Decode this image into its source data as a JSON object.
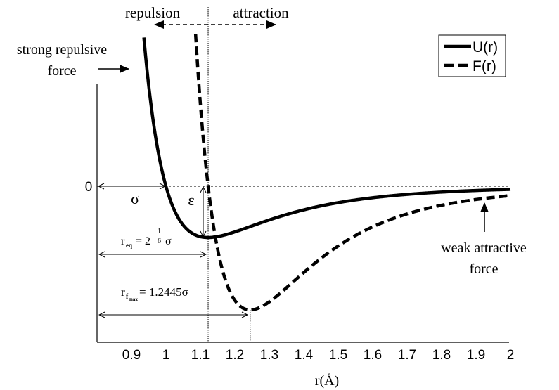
{
  "chart_data": {
    "type": "line",
    "title": "",
    "xlabel": "r(Å)",
    "ylabel": "",
    "xlim": [
      0.8,
      2.0
    ],
    "ylim_U_over_epsilon": [
      -1.0,
      0.0
    ],
    "x_ticks": [
      "0.9",
      "1",
      "1.1",
      "1.2",
      "1.3",
      "1.4",
      "1.5",
      "1.6",
      "1.7",
      "1.8",
      "1.9",
      "2"
    ],
    "y_ticks": [
      "0"
    ],
    "grid": false,
    "legend": {
      "position": "top-right",
      "entries": [
        {
          "label": "U(r)",
          "style": "solid"
        },
        {
          "label": "F(r)",
          "style": "dashed"
        }
      ]
    },
    "series": [
      {
        "name": "U(r)",
        "style": "solid",
        "x": [
          0.935,
          0.95,
          0.97,
          1.0,
          1.03,
          1.06,
          1.09,
          1.1225,
          1.15,
          1.2,
          1.25,
          1.3,
          1.4,
          1.5,
          1.6,
          1.7,
          1.8,
          1.9,
          2.0
        ],
        "values": [
          2.51,
          1.86,
          1.14,
          0.0,
          -0.5,
          -0.8,
          -0.95,
          -1.0,
          -0.98,
          -0.88,
          -0.75,
          -0.63,
          -0.45,
          -0.32,
          -0.22,
          -0.16,
          -0.12,
          -0.09,
          -0.06
        ]
      },
      {
        "name": "F(r)",
        "style": "dashed",
        "x": [
          1.085,
          1.1,
          1.1225,
          1.15,
          1.18,
          1.21,
          1.2445,
          1.28,
          1.32,
          1.4,
          1.5,
          1.6,
          1.7,
          1.8,
          1.9,
          2.0
        ],
        "values": [
          1.14,
          0.53,
          0.0,
          -0.5,
          -0.83,
          -0.98,
          -1.0,
          -0.97,
          -0.89,
          -0.69,
          -0.48,
          -0.33,
          -0.23,
          -0.16,
          -0.12,
          -0.08
        ]
      }
    ],
    "annotations": {
      "repulsion": "repulsion",
      "attraction": "attraction",
      "strong_repulsive_line1": "strong repulsive",
      "strong_repulsive_line2": "force",
      "weak_attractive_line1": "weak attractive",
      "weak_attractive_line2": "force",
      "sigma": "σ",
      "epsilon": "ε",
      "req_base": "r",
      "req_sub": "eq",
      "req_eq": "= 2",
      "req_exp_num": "1",
      "req_exp_den": "6",
      "req_sigma": "σ",
      "rfmax_base": "r",
      "rfmax_sub": "f",
      "rfmax_subsub": "max",
      "rfmax_eq": "= 1.2445σ",
      "r_eq_value": 1.1225,
      "r_fmax_value": 1.2445
    }
  }
}
